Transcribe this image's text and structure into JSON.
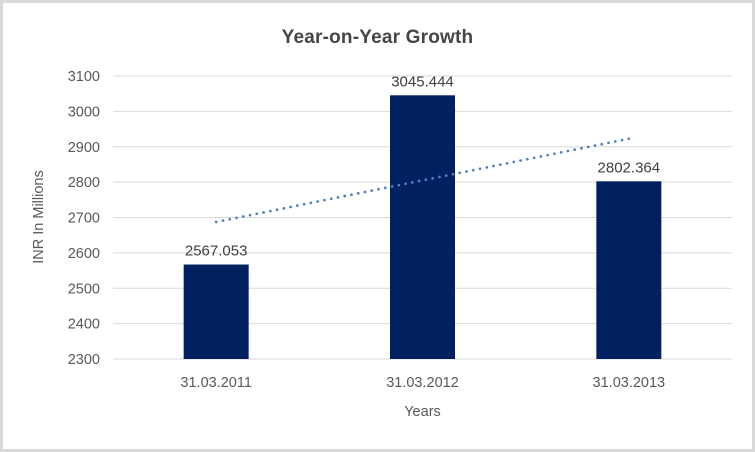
{
  "chart_data": {
    "type": "bar",
    "title": "Year-on-Year Growth",
    "xlabel": "Years",
    "ylabel": "INR In Millions",
    "categories": [
      "31.03.2011",
      "31.03.2012",
      "31.03.2013"
    ],
    "values": [
      2567.053,
      3045.444,
      2802.364
    ],
    "data_labels": [
      "2567.053",
      "3045.444",
      "2802.364"
    ],
    "ylim": [
      2300,
      3100
    ],
    "yticks": [
      2300,
      2400,
      2500,
      2600,
      2700,
      2800,
      2900,
      3000,
      3100
    ],
    "grid": true,
    "legend": false,
    "trendline": {
      "style": "dotted",
      "start": 2687.3,
      "end": 2922.6
    },
    "colors": {
      "bar": "#002060",
      "trendline": "#4E81BD",
      "gridline": "#D9D9D9",
      "axis_text": "#595959",
      "data_label_text": "#404040",
      "title_text": "#454545",
      "border": "#D9D9D9",
      "background": "#FFFFFF"
    }
  }
}
